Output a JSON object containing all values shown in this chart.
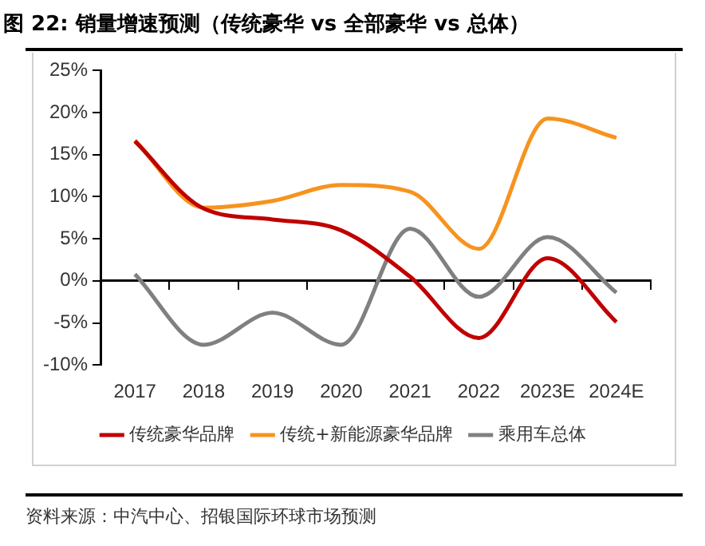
{
  "chart_data": {
    "type": "line",
    "title": "图 22: 销量增速预测（传统豪华 vs 全部豪华 vs 总体）",
    "categories": [
      "2017",
      "2018",
      "2019",
      "2020",
      "2021",
      "2022",
      "2023E",
      "2024E"
    ],
    "series": [
      {
        "name": "传统豪华品牌",
        "color": "#c00000",
        "values": [
          16.6,
          8.6,
          7.3,
          6.0,
          0.5,
          -6.8,
          2.7,
          -4.9
        ]
      },
      {
        "name": "传统+新能源豪华品牌",
        "color": "#f7931e",
        "values": [
          16.7,
          8.7,
          9.5,
          11.4,
          10.6,
          3.8,
          19.3,
          17.0
        ]
      },
      {
        "name": "乘用车总体",
        "color": "#808080",
        "values": [
          0.8,
          -7.6,
          -3.8,
          -7.6,
          6.2,
          -1.9,
          5.2,
          -1.4
        ]
      }
    ],
    "ylim": [
      -10,
      25
    ],
    "yticks": [
      {
        "value": -10,
        "label": "-10%"
      },
      {
        "value": -5,
        "label": "-5%"
      },
      {
        "value": 0,
        "label": "0%"
      },
      {
        "value": 5,
        "label": "5%"
      },
      {
        "value": 10,
        "label": "10%"
      },
      {
        "value": 15,
        "label": "15%"
      },
      {
        "value": 20,
        "label": "20%"
      },
      {
        "value": 25,
        "label": "25%"
      }
    ],
    "legend": "bottom",
    "marker": "none",
    "line_style": "solid",
    "annotations": [
      "资料来源：中汽中心、招银国际环球市场预测"
    ]
  }
}
